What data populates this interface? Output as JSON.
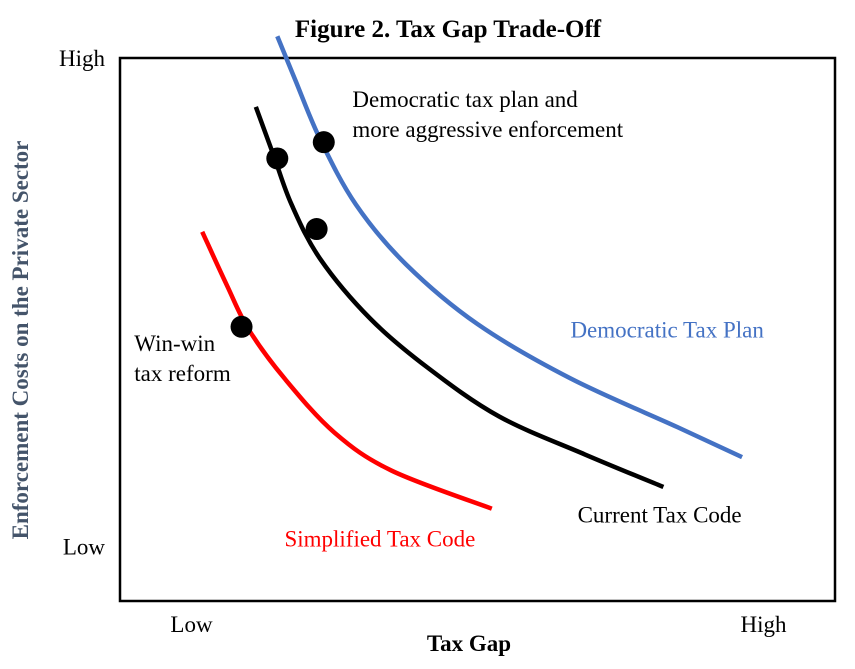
{
  "chart_data": {
    "type": "line",
    "title": "Figure 2. Tax Gap Trade-Off",
    "xlabel": "Tax Gap",
    "ylabel": "Enforcement Costs on the Private Sector",
    "xlim": [
      0,
      10
    ],
    "ylim": [
      0,
      10
    ],
    "x_ticks": [
      {
        "value": 1,
        "label": "Low"
      },
      {
        "value": 9,
        "label": "High"
      }
    ],
    "y_ticks": [
      {
        "value": 10,
        "label": "High"
      },
      {
        "value": 1,
        "label": "Low"
      }
    ],
    "grid": false,
    "series": [
      {
        "name": "Democratic Tax Plan",
        "color": "#4472c4",
        "x": [
          2.2,
          2.45,
          2.8,
          3.3,
          4.0,
          5.0,
          6.3,
          7.8,
          8.7
        ],
        "y": [
          10.4,
          9.6,
          8.5,
          7.3,
          6.2,
          5.1,
          4.1,
          3.2,
          2.65
        ]
      },
      {
        "name": "Current Tax Code",
        "color": "#000000",
        "x": [
          1.9,
          2.15,
          2.4,
          2.8,
          3.5,
          4.3,
          5.3,
          6.5,
          7.6
        ],
        "y": [
          9.1,
          8.2,
          7.3,
          6.3,
          5.2,
          4.3,
          3.4,
          2.7,
          2.1
        ]
      },
      {
        "name": "Simplified Tax Code",
        "color": "#ff0000",
        "x": [
          1.15,
          1.5,
          1.8,
          2.3,
          3.0,
          3.8,
          5.2
        ],
        "y": [
          6.8,
          5.8,
          5.0,
          4.1,
          3.1,
          2.4,
          1.7
        ]
      }
    ],
    "points": [
      {
        "x": 2.85,
        "y": 8.45
      },
      {
        "x": 2.2,
        "y": 8.15
      },
      {
        "x": 2.75,
        "y": 6.85
      },
      {
        "x": 1.7,
        "y": 5.05
      }
    ],
    "annotations": [
      {
        "lines": [
          "Democratic tax plan and",
          "more aggressive enforcement"
        ],
        "x": 3.25,
        "y": 9.1,
        "color": "#000000"
      },
      {
        "lines": [
          "Win-win",
          "tax reform"
        ],
        "x": 0.2,
        "y": 4.6,
        "color": "#000000"
      },
      {
        "lines": [
          "Democratic Tax Plan"
        ],
        "x": 6.3,
        "y": 4.85,
        "color": "#4472c4"
      },
      {
        "lines": [
          "Current Tax Code"
        ],
        "x": 6.4,
        "y": 1.45,
        "color": "#000000"
      },
      {
        "lines": [
          "Simplified Tax Code"
        ],
        "x": 2.3,
        "y": 1.0,
        "color": "#ff0000"
      }
    ],
    "ylabel_color": "#44546a"
  }
}
